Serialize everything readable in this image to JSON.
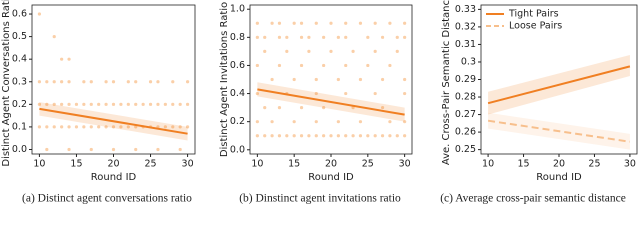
{
  "chart_data": [
    {
      "type": "scatter",
      "ylabel": "Distinct Agent Conversations Ratio",
      "xlabel": "Round ID",
      "caption": "(a)  Distinct agent conversations ratio",
      "color": "#f5a860",
      "x": [
        10,
        12,
        13,
        14,
        10,
        11,
        12,
        13,
        14,
        16,
        17,
        19,
        20,
        22,
        23,
        25,
        26,
        28,
        30,
        10,
        11,
        12,
        13,
        14,
        15,
        16,
        17,
        18,
        19,
        20,
        21,
        22,
        23,
        24,
        25,
        26,
        27,
        28,
        29,
        30,
        10,
        11,
        12,
        13,
        14,
        15,
        16,
        17,
        18,
        19,
        20,
        21,
        22,
        23,
        24,
        25,
        26,
        27,
        28,
        29,
        30,
        11,
        14,
        17,
        20,
        23,
        26,
        29
      ],
      "values": [
        0.6,
        0.5,
        0.4,
        0.4,
        0.3,
        0.3,
        0.3,
        0.3,
        0.3,
        0.3,
        0.3,
        0.3,
        0.3,
        0.3,
        0.3,
        0.3,
        0.3,
        0.3,
        0.3,
        0.2,
        0.2,
        0.2,
        0.2,
        0.2,
        0.2,
        0.2,
        0.2,
        0.2,
        0.2,
        0.2,
        0.2,
        0.2,
        0.2,
        0.2,
        0.2,
        0.2,
        0.2,
        0.2,
        0.2,
        0.2,
        0.1,
        0.1,
        0.1,
        0.1,
        0.1,
        0.1,
        0.1,
        0.1,
        0.1,
        0.1,
        0.1,
        0.1,
        0.1,
        0.1,
        0.1,
        0.1,
        0.1,
        0.1,
        0.1,
        0.1,
        0.1,
        0,
        0,
        0,
        0,
        0,
        0,
        0
      ],
      "fit": {
        "x": [
          10,
          30
        ],
        "values": [
          0.18,
          0.07
        ],
        "lower": [
          0.15,
          0.04
        ],
        "upper": [
          0.21,
          0.1
        ],
        "color": "#f07f22"
      },
      "xlim": [
        9,
        31
      ],
      "xticks": [
        10,
        15,
        20,
        25,
        30
      ],
      "ylim": [
        -0.02,
        0.64
      ],
      "yticks": [
        {
          "value": 0,
          "label": "0.0"
        },
        0.1,
        0.2,
        0.3,
        0.4,
        0.5,
        0.6
      ]
    },
    {
      "type": "scatter",
      "ylabel": "Distinct Agent Invitations Ratio",
      "xlabel": "Round ID",
      "caption": "(b)  Dinstinct agent invitations ratio",
      "color": "#f5a860",
      "x": [
        10,
        12,
        13,
        15,
        16,
        18,
        20,
        22,
        24,
        26,
        28,
        30,
        10,
        11,
        13,
        14,
        16,
        17,
        19,
        21,
        22,
        25,
        27,
        29,
        30,
        11,
        14,
        17,
        20,
        23,
        26,
        29,
        10,
        13,
        16,
        19,
        22,
        25,
        28,
        12,
        15,
        18,
        21,
        24,
        27,
        30,
        10,
        14,
        18,
        22,
        26,
        30,
        11,
        13,
        16,
        19,
        23,
        27,
        10,
        12,
        15,
        18,
        21,
        24,
        28,
        30,
        10,
        11,
        12,
        13,
        14,
        15,
        16,
        17,
        18,
        19,
        20,
        21,
        22,
        23,
        24,
        25,
        26,
        27,
        28,
        29,
        30
      ],
      "values": [
        0.9,
        0.9,
        0.9,
        0.9,
        0.9,
        0.9,
        0.9,
        0.9,
        0.9,
        0.9,
        0.9,
        0.9,
        0.8,
        0.8,
        0.8,
        0.8,
        0.8,
        0.8,
        0.8,
        0.8,
        0.8,
        0.8,
        0.8,
        0.8,
        0.8,
        0.7,
        0.7,
        0.7,
        0.7,
        0.7,
        0.7,
        0.7,
        0.6,
        0.6,
        0.6,
        0.6,
        0.6,
        0.6,
        0.6,
        0.5,
        0.5,
        0.5,
        0.5,
        0.5,
        0.5,
        0.5,
        0.4,
        0.4,
        0.4,
        0.4,
        0.4,
        0.4,
        0.3,
        0.3,
        0.3,
        0.3,
        0.3,
        0.3,
        0.2,
        0.2,
        0.2,
        0.2,
        0.2,
        0.2,
        0.2,
        0.2,
        0.1,
        0.1,
        0.1,
        0.1,
        0.1,
        0.1,
        0.1,
        0.1,
        0.1,
        0.1,
        0.1,
        0.1,
        0.1,
        0.1,
        0.1,
        0.1,
        0.1,
        0.1,
        0.1,
        0.1,
        0.1
      ],
      "fit": {
        "x": [
          10,
          30
        ],
        "values": [
          0.43,
          0.25
        ],
        "lower": [
          0.38,
          0.2
        ],
        "upper": [
          0.48,
          0.3
        ],
        "color": "#f07f22"
      },
      "xlim": [
        9,
        31
      ],
      "xticks": [
        10,
        15,
        20,
        25,
        30
      ],
      "ylim": [
        -0.03,
        1.03
      ],
      "yticks": [
        {
          "value": 0,
          "label": "0.0"
        },
        0.2,
        0.4,
        0.6,
        0.8,
        {
          "value": 1,
          "label": "1.0"
        }
      ]
    },
    {
      "type": "line",
      "ylabel": "Ave. Cross-Pair Semantic Distance",
      "xlabel": "Round ID",
      "caption": "(c)  Average cross-pair semantic distance",
      "legend": "upper left",
      "series": [
        {
          "name": "Tight Pairs",
          "color": "#f07f22",
          "linestyle": "solid",
          "x": [
            10,
            30
          ],
          "values": [
            0.2765,
            0.2975
          ],
          "lower": [
            0.27,
            0.292
          ],
          "upper": [
            0.283,
            0.304
          ]
        },
        {
          "name": "Loose Pairs",
          "color": "#f7bf8c",
          "linestyle": "dashed",
          "x": [
            10,
            30
          ],
          "values": [
            0.2665,
            0.2545
          ],
          "lower": [
            0.262,
            0.25
          ],
          "upper": [
            0.271,
            0.259
          ]
        }
      ],
      "xlim": [
        9,
        31
      ],
      "xticks": [
        10,
        15,
        20,
        25,
        30
      ],
      "ylim": [
        0.2475,
        0.3325
      ],
      "yticks": [
        0.25,
        0.26,
        0.27,
        0.28,
        0.29,
        0.3,
        0.31,
        0.32,
        0.33
      ]
    }
  ]
}
